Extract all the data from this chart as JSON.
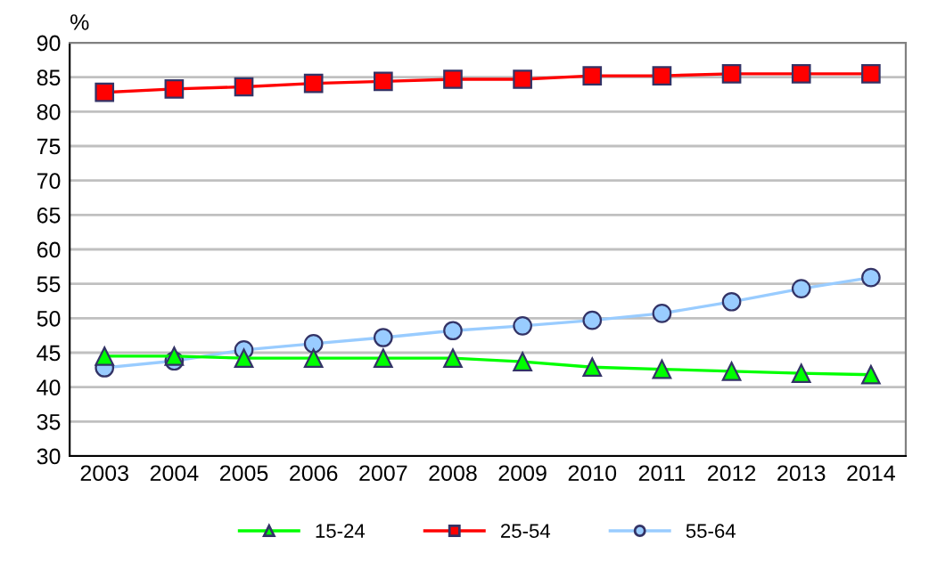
{
  "chart_data": {
    "type": "line",
    "ylabel": "%",
    "categories": [
      "2003",
      "2004",
      "2005",
      "2006",
      "2007",
      "2008",
      "2009",
      "2010",
      "2011",
      "2012",
      "2013",
      "2014"
    ],
    "series": [
      {
        "name": "15-24",
        "color": "#00ff00",
        "marker": "triangle",
        "values": [
          44.5,
          44.5,
          44.2,
          44.2,
          44.2,
          44.2,
          43.7,
          42.9,
          42.6,
          42.3,
          42.0,
          41.8
        ]
      },
      {
        "name": "25-54",
        "color": "#ff0000",
        "marker": "square",
        "values": [
          82.8,
          83.3,
          83.6,
          84.1,
          84.4,
          84.7,
          84.7,
          85.2,
          85.2,
          85.5,
          85.5,
          85.5
        ]
      },
      {
        "name": "55-64",
        "color": "#99ccff",
        "marker": "circle",
        "values": [
          42.8,
          43.8,
          45.4,
          46.3,
          47.2,
          48.2,
          48.9,
          49.7,
          50.7,
          52.4,
          54.3,
          55.9
        ]
      }
    ],
    "ylim": [
      30,
      90
    ],
    "yticks": [
      30,
      35,
      40,
      45,
      50,
      55,
      60,
      65,
      70,
      75,
      80,
      85,
      90
    ],
    "grid": "y",
    "legend": "bottom",
    "line_style": "solid"
  }
}
